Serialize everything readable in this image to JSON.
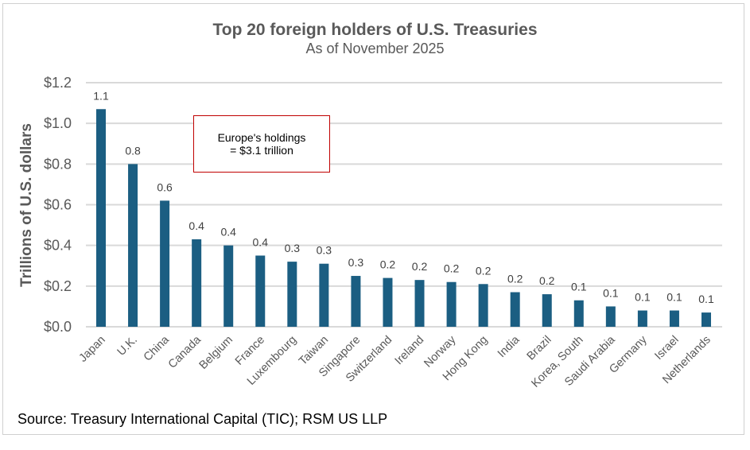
{
  "chart_data": {
    "type": "bar",
    "title": "Top 20 foreign holders of U.S. Treasuries",
    "subtitle": "As of November 2025",
    "xlabel": "",
    "ylabel": "Trillions of U.S. dollars",
    "ylim": [
      0,
      1.2
    ],
    "yticks": [
      0,
      0.2,
      0.4,
      0.6,
      0.8,
      1.0,
      1.2
    ],
    "ytick_labels": [
      "$0.0",
      "$0.2",
      "$0.4",
      "$0.6",
      "$0.8",
      "$1.0",
      "$1.2"
    ],
    "grid": true,
    "bar_color": "#1b5e82",
    "categories": [
      "Japan",
      "U.K.",
      "China",
      "Canada",
      "Belgium",
      "France",
      "Luxembourg",
      "Taiwan",
      "Singapore",
      "Switzerland",
      "Ireland",
      "Norway",
      "Hong Kong",
      "India",
      "Brazil",
      "Korea, South",
      "Saudi Arabia",
      "Germany",
      "Israel",
      "Netherlands"
    ],
    "values": [
      1.07,
      0.8,
      0.62,
      0.43,
      0.4,
      0.35,
      0.32,
      0.31,
      0.25,
      0.24,
      0.23,
      0.22,
      0.21,
      0.17,
      0.16,
      0.13,
      0.1,
      0.08,
      0.08,
      0.07
    ],
    "data_labels": [
      "1.1",
      "0.8",
      "0.6",
      "0.4",
      "0.4",
      "0.4",
      "0.3",
      "0.3",
      "0.3",
      "0.2",
      "0.2",
      "0.2",
      "0.2",
      "0.2",
      "0.2",
      "0.1",
      "0.1",
      "0.1",
      "0.1",
      "0.1"
    ],
    "annotation": {
      "line1": "Europe's holdings",
      "line2": "= $3.1 trillion",
      "border_color": "#c00000"
    },
    "source": "Source: Treasury International Capital (TIC); RSM US LLP"
  }
}
